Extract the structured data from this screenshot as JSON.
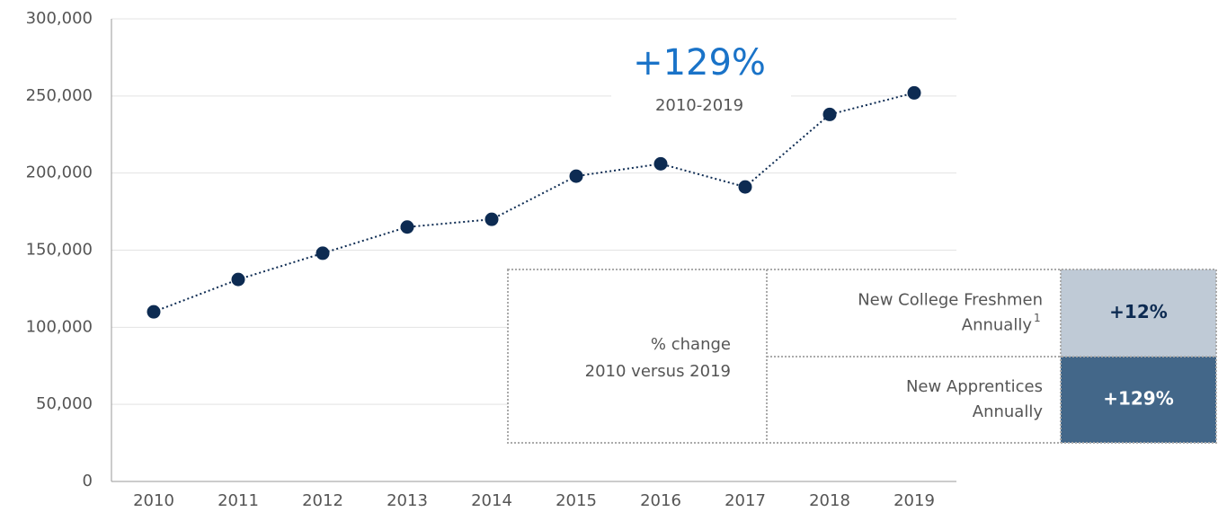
{
  "chart_data": {
    "type": "line",
    "categories": [
      "2010",
      "2011",
      "2012",
      "2013",
      "2014",
      "2015",
      "2016",
      "2017",
      "2018",
      "2019"
    ],
    "values": [
      110000,
      131000,
      148000,
      165000,
      170000,
      198000,
      206000,
      191000,
      238000,
      252000
    ],
    "color": "#0d2b52",
    "ylim": [
      0,
      300000
    ],
    "yticks": [
      0,
      {
        "value": 50000,
        "label": "50,000"
      },
      {
        "value": 100000,
        "label": "100,000"
      },
      {
        "value": 150000,
        "label": "150,000"
      },
      {
        "value": 200000,
        "label": "200,000"
      },
      {
        "value": 250000,
        "label": "250,000"
      },
      {
        "value": 300000,
        "label": "300,000"
      }
    ],
    "grid": true,
    "annotation": {
      "value": "+129%",
      "period": "2010-2019"
    },
    "table": {
      "header": [
        "% change",
        "2010 versus 2019"
      ],
      "rows": [
        {
          "label": [
            "New College Freshmen",
            "Annually"
          ],
          "note": "1",
          "value": "+12%"
        },
        {
          "label": [
            "New Apprentices",
            "Annually"
          ],
          "value": "+129%"
        }
      ]
    }
  }
}
